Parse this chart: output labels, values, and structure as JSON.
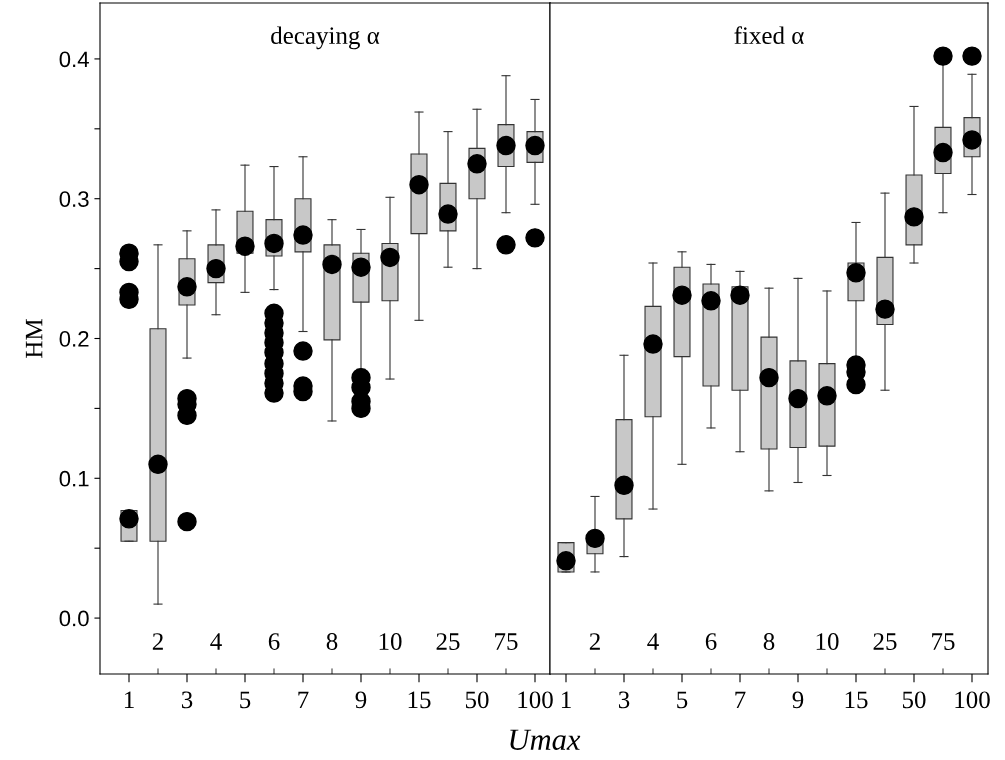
{
  "chart_data": [
    {
      "type": "box",
      "title": "decaying α",
      "ylabel": "HM",
      "xlabel": "Umax",
      "categories": [
        "1",
        "2",
        "3",
        "4",
        "5",
        "6",
        "7",
        "8",
        "9",
        "10",
        "15",
        "25",
        "50",
        "75",
        "100"
      ],
      "ylim": [
        -0.04,
        0.44
      ],
      "yticks": [
        {
          "value": 0.0,
          "label": "0.0"
        },
        {
          "value": 0.05,
          "label": null
        },
        0.1,
        {
          "value": 0.15,
          "label": null
        },
        0.2,
        {
          "value": 0.25,
          "label": null
        },
        0.3,
        {
          "value": 0.35,
          "label": null
        },
        0.4
      ],
      "color": "#c8c8c8",
      "marker": "circle",
      "grid": false,
      "legend": false,
      "boxes": [
        {
          "low": 0.055,
          "q1": 0.055,
          "median": 0.071,
          "q3": 0.077,
          "high": 0.077,
          "outliers": [
            0.261,
            0.255,
            0.233,
            0.228
          ]
        },
        {
          "low": 0.01,
          "q1": 0.055,
          "median": 0.11,
          "q3": 0.207,
          "high": 0.267
        },
        {
          "low": 0.186,
          "q1": 0.224,
          "median": 0.237,
          "q3": 0.257,
          "high": 0.277,
          "outliers": [
            0.157,
            0.153,
            0.145,
            0.069
          ]
        },
        {
          "low": 0.217,
          "q1": 0.24,
          "median": 0.25,
          "q3": 0.267,
          "high": 0.292
        },
        {
          "low": 0.233,
          "q1": 0.261,
          "median": 0.266,
          "q3": 0.291,
          "high": 0.324
        },
        {
          "low": 0.235,
          "q1": 0.259,
          "median": 0.268,
          "q3": 0.285,
          "high": 0.323,
          "outliers": [
            0.218,
            0.211,
            0.204,
            0.197,
            0.19,
            0.182,
            0.175,
            0.168,
            0.161
          ]
        },
        {
          "low": 0.205,
          "q1": 0.262,
          "median": 0.274,
          "q3": 0.3,
          "high": 0.33,
          "outliers": [
            0.191,
            0.166,
            0.162
          ]
        },
        {
          "low": 0.141,
          "q1": 0.199,
          "median": 0.253,
          "q3": 0.267,
          "high": 0.285
        },
        {
          "low": 0.178,
          "q1": 0.226,
          "median": 0.251,
          "q3": 0.261,
          "high": 0.278,
          "outliers": [
            0.172,
            0.165,
            0.155,
            0.15
          ]
        },
        {
          "low": 0.171,
          "q1": 0.227,
          "median": 0.258,
          "q3": 0.268,
          "high": 0.301
        },
        {
          "low": 0.213,
          "q1": 0.275,
          "median": 0.31,
          "q3": 0.332,
          "high": 0.362
        },
        {
          "low": 0.251,
          "q1": 0.277,
          "median": 0.289,
          "q3": 0.311,
          "high": 0.348
        },
        {
          "low": 0.25,
          "q1": 0.3,
          "median": 0.325,
          "q3": 0.336,
          "high": 0.364
        },
        {
          "low": 0.29,
          "q1": 0.323,
          "median": 0.338,
          "q3": 0.353,
          "high": 0.388,
          "outliers": [
            0.267
          ]
        },
        {
          "low": 0.296,
          "q1": 0.326,
          "median": 0.338,
          "q3": 0.348,
          "high": 0.371,
          "outliers": [
            0.272
          ]
        }
      ]
    },
    {
      "type": "box",
      "title": "fixed α",
      "tick_labels": "x",
      "categories": [
        "1",
        "2",
        "3",
        "4",
        "5",
        "6",
        "7",
        "8",
        "9",
        "10",
        "15",
        "25",
        "50",
        "75",
        "100"
      ],
      "ylim": [
        -0.04,
        0.44
      ],
      "color": "#c8c8c8",
      "marker": "circle",
      "grid": false,
      "legend": false,
      "boxes": [
        {
          "low": 0.033,
          "q1": 0.033,
          "median": 0.041,
          "q3": 0.054,
          "high": 0.054
        },
        {
          "low": 0.033,
          "q1": 0.046,
          "median": 0.057,
          "q3": 0.059,
          "high": 0.087
        },
        {
          "low": 0.044,
          "q1": 0.071,
          "median": 0.095,
          "q3": 0.142,
          "high": 0.188
        },
        {
          "low": 0.078,
          "q1": 0.144,
          "median": 0.196,
          "q3": 0.223,
          "high": 0.254
        },
        {
          "low": 0.11,
          "q1": 0.187,
          "median": 0.231,
          "q3": 0.251,
          "high": 0.262
        },
        {
          "low": 0.136,
          "q1": 0.166,
          "median": 0.227,
          "q3": 0.239,
          "high": 0.253
        },
        {
          "low": 0.119,
          "q1": 0.163,
          "median": 0.231,
          "q3": 0.237,
          "high": 0.248
        },
        {
          "low": 0.091,
          "q1": 0.121,
          "median": 0.172,
          "q3": 0.201,
          "high": 0.236
        },
        {
          "low": 0.097,
          "q1": 0.122,
          "median": 0.157,
          "q3": 0.184,
          "high": 0.243
        },
        {
          "low": 0.102,
          "q1": 0.123,
          "median": 0.159,
          "q3": 0.182,
          "high": 0.234
        },
        {
          "low": 0.186,
          "q1": 0.227,
          "median": 0.247,
          "q3": 0.254,
          "high": 0.283,
          "outliers": [
            0.181,
            0.176,
            0.167
          ]
        },
        {
          "low": 0.163,
          "q1": 0.21,
          "median": 0.221,
          "q3": 0.258,
          "high": 0.304
        },
        {
          "low": 0.254,
          "q1": 0.267,
          "median": 0.287,
          "q3": 0.317,
          "high": 0.366
        },
        {
          "low": 0.29,
          "q1": 0.318,
          "median": 0.333,
          "q3": 0.351,
          "high": 0.398,
          "outliers": [
            0.402
          ]
        },
        {
          "low": 0.303,
          "q1": 0.33,
          "median": 0.342,
          "q3": 0.358,
          "high": 0.389,
          "outliers": [
            0.402
          ]
        }
      ]
    }
  ]
}
